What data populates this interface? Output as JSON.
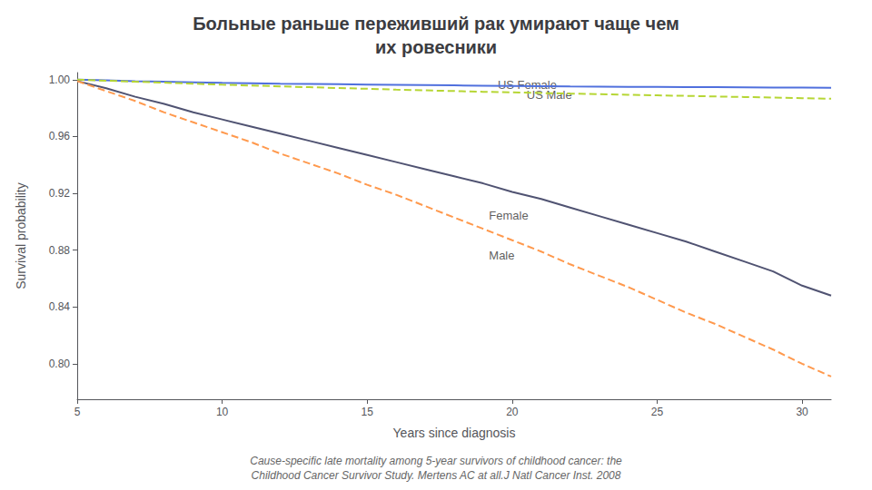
{
  "chart_data": {
    "type": "line",
    "title": "Больные раньше переживший рак умирают чаще чем\nих ровесники",
    "caption": "Cause-specific late mortality among 5-year survivors of childhood cancer: the\nChildhood Cancer Survivor Study. Mertens AC at all.J Natl Cancer Inst. 2008",
    "xlabel": "Years since diagnosis",
    "ylabel": "Survival probability",
    "xlim": [
      5,
      31
    ],
    "ylim": [
      0.775,
      1.005
    ],
    "xticks": [
      5,
      10,
      15,
      20,
      25,
      30
    ],
    "yticks": [
      {
        "value": 0.8,
        "label": "0.80"
      },
      0.84,
      0.88,
      0.92,
      0.96,
      {
        "value": 1.0,
        "label": "1.00"
      }
    ],
    "grid": false,
    "x": [
      5,
      6,
      7,
      8,
      9,
      10,
      11,
      12,
      13,
      14,
      15,
      16,
      17,
      18,
      19,
      20,
      21,
      22,
      23,
      24,
      25,
      26,
      27,
      28,
      29,
      30,
      31
    ],
    "series": [
      {
        "line_style": "solid",
        "values": [
          1.0,
          0.9995,
          0.999,
          0.9986,
          0.9982,
          0.9978,
          0.9975,
          0.9972,
          0.997,
          0.9968,
          0.9966,
          0.9964,
          0.9962,
          0.996,
          0.9958,
          0.9956,
          0.9954,
          0.9952,
          0.9951,
          0.995,
          0.9949,
          0.9948,
          0.9947,
          0.9946,
          0.9945,
          0.9944,
          0.9943
        ]
      },
      {
        "line_style": "dashed",
        "values": [
          1.0,
          0.9993,
          0.9986,
          0.9979,
          0.9972,
          0.9965,
          0.9959,
          0.9953,
          0.9947,
          0.9941,
          0.9936,
          0.993,
          0.9925,
          0.992,
          0.9915,
          0.9911,
          0.9906,
          0.9902,
          0.9898,
          0.9894,
          0.989,
          0.9886,
          0.9882,
          0.9878,
          0.9874,
          0.987,
          0.9866
        ]
      },
      {
        "line_style": "solid",
        "values": [
          0.999,
          0.994,
          0.988,
          0.983,
          0.977,
          0.972,
          0.967,
          0.962,
          0.957,
          0.952,
          0.947,
          0.942,
          0.937,
          0.932,
          0.927,
          0.921,
          0.916,
          0.91,
          0.904,
          0.898,
          0.892,
          0.886,
          0.879,
          0.872,
          0.865,
          0.855,
          0.848
        ]
      },
      {
        "line_style": "dashed",
        "values": [
          0.999,
          0.992,
          0.985,
          0.977,
          0.97,
          0.963,
          0.956,
          0.948,
          0.941,
          0.934,
          0.926,
          0.919,
          0.911,
          0.903,
          0.895,
          0.887,
          0.879,
          0.87,
          0.862,
          0.854,
          0.845,
          0.836,
          0.828,
          0.819,
          0.81,
          0.8,
          0.791
        ]
      }
    ],
    "annotations": [
      {
        "text": "US Female",
        "x": 19.5,
        "y": 0.9965
      },
      {
        "text": "US Male",
        "x": 20.5,
        "y": 0.9895
      },
      {
        "text": "Female",
        "x": 19.2,
        "y": 0.9045
      },
      {
        "text": "Male",
        "x": 19.2,
        "y": 0.876
      }
    ]
  }
}
